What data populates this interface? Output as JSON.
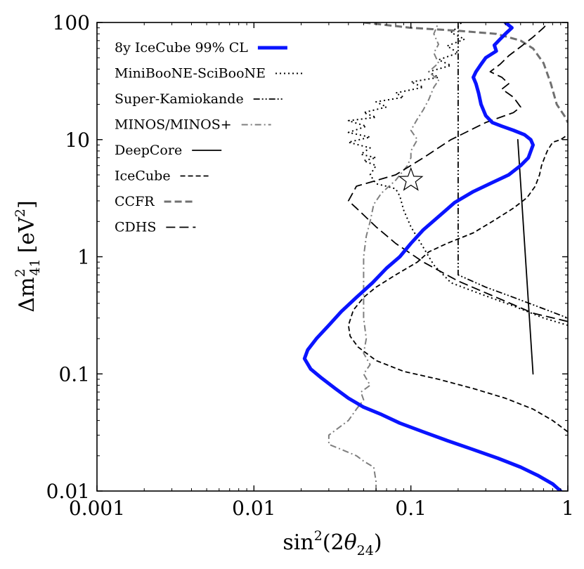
{
  "chart_data": {
    "type": "line",
    "title": "",
    "xscale": "log",
    "yscale": "log",
    "xlim": [
      0.001,
      1
    ],
    "ylim": [
      0.01,
      100
    ],
    "x_ticks": [
      0.001,
      0.01,
      0.1,
      1
    ],
    "x_tick_labels": [
      "0.001",
      "0.01",
      "0.1",
      "1"
    ],
    "y_ticks": [
      0.01,
      0.1,
      1,
      10,
      100
    ],
    "y_tick_labels": [
      "0.01",
      "0.1",
      "1",
      "10",
      "100"
    ],
    "xlabel": {
      "base": "sin",
      "sup": "2",
      "open": "(2",
      "theta": "θ",
      "sub": "24",
      "close": ")"
    },
    "ylabel": {
      "delta": "Δm",
      "sup": "2",
      "sub": "41",
      "unit": "[eV",
      "unit_sup": "2",
      "unit_close": "]"
    },
    "legend_location": "upper-left",
    "marker": {
      "name": "best-fit-star",
      "x": 0.1,
      "y": 4.5
    },
    "series": [
      {
        "name": "8y IceCube 99% CL",
        "color": "#0a14ff",
        "style": "solid-thick",
        "points": [
          [
            0.9,
            0.01
          ],
          [
            0.8,
            0.0115
          ],
          [
            0.65,
            0.0135
          ],
          [
            0.5,
            0.016
          ],
          [
            0.36,
            0.019
          ],
          [
            0.24,
            0.023
          ],
          [
            0.17,
            0.027
          ],
          [
            0.12,
            0.032
          ],
          [
            0.085,
            0.038
          ],
          [
            0.065,
            0.045
          ],
          [
            0.05,
            0.052
          ],
          [
            0.04,
            0.062
          ],
          [
            0.033,
            0.075
          ],
          [
            0.027,
            0.092
          ],
          [
            0.023,
            0.11
          ],
          [
            0.021,
            0.135
          ],
          [
            0.022,
            0.16
          ],
          [
            0.025,
            0.2
          ],
          [
            0.03,
            0.26
          ],
          [
            0.036,
            0.34
          ],
          [
            0.045,
            0.45
          ],
          [
            0.057,
            0.6
          ],
          [
            0.07,
            0.8
          ],
          [
            0.085,
            1.0
          ],
          [
            0.1,
            1.3
          ],
          [
            0.12,
            1.7
          ],
          [
            0.15,
            2.2
          ],
          [
            0.19,
            2.9
          ],
          [
            0.25,
            3.6
          ],
          [
            0.33,
            4.3
          ],
          [
            0.42,
            5.0
          ],
          [
            0.5,
            6.0
          ],
          [
            0.56,
            7.0
          ],
          [
            0.6,
            9.0
          ],
          [
            0.58,
            10.0
          ],
          [
            0.53,
            11.0
          ],
          [
            0.45,
            12.0
          ],
          [
            0.38,
            13.0
          ],
          [
            0.33,
            14.0
          ],
          [
            0.3,
            16.0
          ],
          [
            0.28,
            20.0
          ],
          [
            0.27,
            25.0
          ],
          [
            0.26,
            30.0
          ],
          [
            0.25,
            34.0
          ],
          [
            0.26,
            38.0
          ],
          [
            0.28,
            44.0
          ],
          [
            0.3,
            50.0
          ],
          [
            0.35,
            57.0
          ],
          [
            0.34,
            64.0
          ],
          [
            0.37,
            72.0
          ],
          [
            0.4,
            80.0
          ],
          [
            0.44,
            90.0
          ],
          [
            0.4,
            100.0
          ]
        ]
      },
      {
        "name": "MiniBooNE-SciBooNE",
        "color": "#000000",
        "style": "dotted",
        "points": [
          [
            1.0,
            0.26
          ],
          [
            0.7,
            0.3
          ],
          [
            0.45,
            0.38
          ],
          [
            0.28,
            0.48
          ],
          [
            0.18,
            0.6
          ],
          [
            0.14,
            0.85
          ],
          [
            0.12,
            1.2
          ],
          [
            0.1,
            1.8
          ],
          [
            0.09,
            2.5
          ],
          [
            0.085,
            3.3
          ],
          [
            0.08,
            3.8
          ],
          [
            0.07,
            4.0
          ],
          [
            0.06,
            4.2
          ],
          [
            0.055,
            5.0
          ],
          [
            0.06,
            6.0
          ],
          [
            0.05,
            6.6
          ],
          [
            0.06,
            7.0
          ],
          [
            0.048,
            7.5
          ],
          [
            0.055,
            8.5
          ],
          [
            0.04,
            9.5
          ],
          [
            0.055,
            10.5
          ],
          [
            0.04,
            11.5
          ],
          [
            0.052,
            13.0
          ],
          [
            0.04,
            14.5
          ],
          [
            0.06,
            15.5
          ],
          [
            0.05,
            17.0
          ],
          [
            0.07,
            19.0
          ],
          [
            0.06,
            21.0
          ],
          [
            0.09,
            23.0
          ],
          [
            0.08,
            25.0
          ],
          [
            0.12,
            28.0
          ],
          [
            0.1,
            31.0
          ],
          [
            0.15,
            34.0
          ],
          [
            0.13,
            38.0
          ],
          [
            0.18,
            43.0
          ],
          [
            0.15,
            48.0
          ],
          [
            0.2,
            55.0
          ],
          [
            0.17,
            63.0
          ],
          [
            0.22,
            72.0
          ],
          [
            0.18,
            82.0
          ],
          [
            0.2,
            92.0
          ],
          [
            0.21,
            100.0
          ]
        ]
      },
      {
        "name": "Super-Kamiokande",
        "color": "#000000",
        "style": "dash-dot-dot",
        "points": [
          [
            0.2,
            100.0
          ],
          [
            0.2,
            1.0
          ],
          [
            0.2,
            0.7
          ],
          [
            0.3,
            0.55
          ],
          [
            0.45,
            0.45
          ],
          [
            0.7,
            0.36
          ],
          [
            1.0,
            0.3
          ]
        ]
      },
      {
        "name": "MINOS/MINOS+",
        "color": "#7f7f7f",
        "style": "dash-dot",
        "points": [
          [
            0.06,
            0.01
          ],
          [
            0.06,
            0.012
          ],
          [
            0.058,
            0.016
          ],
          [
            0.05,
            0.018
          ],
          [
            0.045,
            0.02
          ],
          [
            0.038,
            0.022
          ],
          [
            0.03,
            0.025
          ],
          [
            0.03,
            0.03
          ],
          [
            0.035,
            0.035
          ],
          [
            0.04,
            0.04
          ],
          [
            0.045,
            0.05
          ],
          [
            0.05,
            0.06
          ],
          [
            0.048,
            0.07
          ],
          [
            0.055,
            0.08
          ],
          [
            0.05,
            0.1
          ],
          [
            0.055,
            0.12
          ],
          [
            0.05,
            0.15
          ],
          [
            0.052,
            0.2
          ],
          [
            0.05,
            0.3
          ],
          [
            0.05,
            0.5
          ],
          [
            0.05,
            0.7
          ],
          [
            0.05,
            1.0
          ],
          [
            0.052,
            1.5
          ],
          [
            0.055,
            2.0
          ],
          [
            0.058,
            2.8
          ],
          [
            0.065,
            3.5
          ],
          [
            0.08,
            4.5
          ],
          [
            0.095,
            6.0
          ],
          [
            0.1,
            7.0
          ],
          [
            0.1,
            8.0
          ],
          [
            0.11,
            10.0
          ],
          [
            0.1,
            12.0
          ],
          [
            0.11,
            15.0
          ],
          [
            0.12,
            18.0
          ],
          [
            0.13,
            22.0
          ],
          [
            0.14,
            28.0
          ],
          [
            0.15,
            32.0
          ],
          [
            0.13,
            38.0
          ],
          [
            0.15,
            45.0
          ],
          [
            0.14,
            55.0
          ],
          [
            0.15,
            65.0
          ],
          [
            0.14,
            80.0
          ],
          [
            0.15,
            100.0
          ]
        ]
      },
      {
        "name": "DeepCore",
        "color": "#000000",
        "style": "solid",
        "points": [
          [
            0.6,
            0.1
          ],
          [
            0.48,
            10.0
          ]
        ]
      },
      {
        "name": "IceCube",
        "color": "#000000",
        "style": "dashed-short",
        "points": [
          [
            1.0,
            0.032
          ],
          [
            0.8,
            0.04
          ],
          [
            0.6,
            0.05
          ],
          [
            0.4,
            0.062
          ],
          [
            0.25,
            0.075
          ],
          [
            0.15,
            0.09
          ],
          [
            0.09,
            0.105
          ],
          [
            0.06,
            0.13
          ],
          [
            0.046,
            0.17
          ],
          [
            0.041,
            0.21
          ],
          [
            0.04,
            0.26
          ],
          [
            0.043,
            0.35
          ],
          [
            0.05,
            0.45
          ],
          [
            0.06,
            0.55
          ],
          [
            0.08,
            0.7
          ],
          [
            0.11,
            0.9
          ],
          [
            0.13,
            1.1
          ],
          [
            0.17,
            1.3
          ],
          [
            0.25,
            1.6
          ],
          [
            0.33,
            2.0
          ],
          [
            0.45,
            2.6
          ],
          [
            0.55,
            3.2
          ],
          [
            0.62,
            4.0
          ],
          [
            0.66,
            5.0
          ],
          [
            0.68,
            6.0
          ],
          [
            0.71,
            7.0
          ],
          [
            0.74,
            8.0
          ],
          [
            0.8,
            9.5
          ],
          [
            0.9,
            10.0
          ],
          [
            1.0,
            11.0
          ]
        ]
      },
      {
        "name": "CCFR",
        "color": "#707070",
        "style": "dashed-thick",
        "points": [
          [
            0.05,
            100.0
          ],
          [
            0.1,
            90.0
          ],
          [
            0.2,
            85.0
          ],
          [
            0.35,
            80.0
          ],
          [
            0.5,
            70.0
          ],
          [
            0.6,
            60.0
          ],
          [
            0.7,
            45.0
          ],
          [
            0.78,
            30.0
          ],
          [
            0.85,
            20.0
          ],
          [
            0.95,
            16.0
          ],
          [
            1.0,
            14.0
          ]
        ]
      },
      {
        "name": "CDHS",
        "color": "#000000",
        "style": "dashed-long",
        "points": [
          [
            1.0,
            0.28
          ],
          [
            0.6,
            0.33
          ],
          [
            0.35,
            0.45
          ],
          [
            0.2,
            0.62
          ],
          [
            0.12,
            0.9
          ],
          [
            0.08,
            1.3
          ],
          [
            0.06,
            1.8
          ],
          [
            0.045,
            2.6
          ],
          [
            0.04,
            3.0
          ],
          [
            0.045,
            4.0
          ],
          [
            0.08,
            5.0
          ],
          [
            0.12,
            7.0
          ],
          [
            0.18,
            10.0
          ],
          [
            0.3,
            14.0
          ],
          [
            0.45,
            17.0
          ],
          [
            0.5,
            19.0
          ],
          [
            0.45,
            23.0
          ],
          [
            0.38,
            27.0
          ],
          [
            0.42,
            30.0
          ],
          [
            0.38,
            34.0
          ],
          [
            0.32,
            38.0
          ],
          [
            0.37,
            44.0
          ],
          [
            0.42,
            52.0
          ],
          [
            0.5,
            62.0
          ],
          [
            0.6,
            75.0
          ],
          [
            0.7,
            90.0
          ],
          [
            0.75,
            100.0
          ]
        ]
      }
    ]
  }
}
